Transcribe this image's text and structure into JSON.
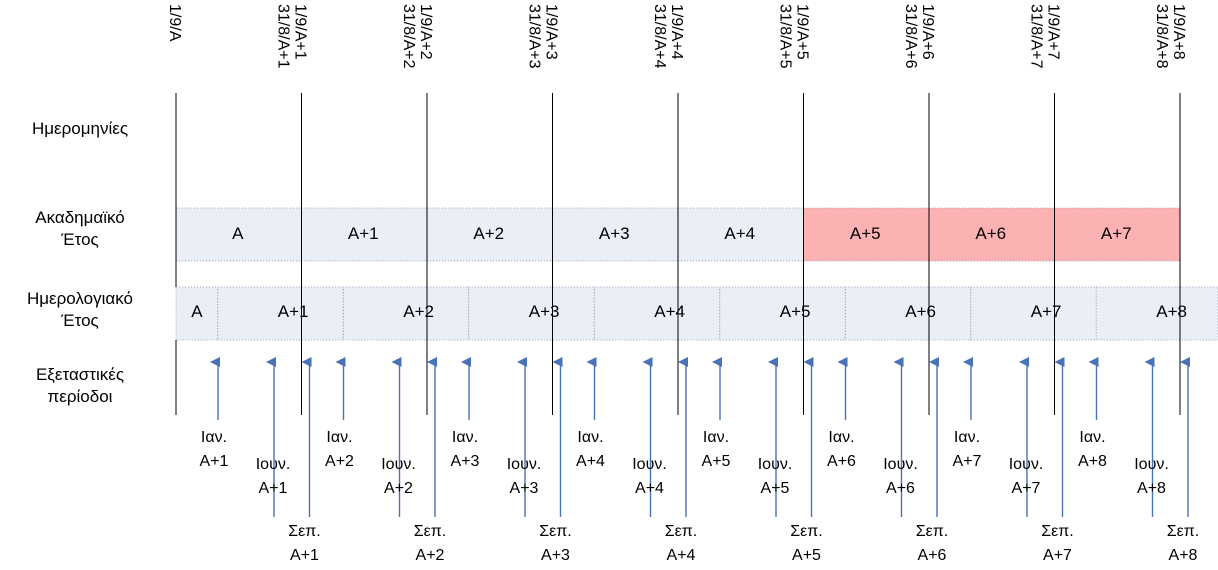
{
  "row_labels": {
    "dates": "Ημερομηνίες",
    "academic_line1": "Ακαδημαϊκό",
    "academic_line2": "Έτος",
    "calendar_line1": "Ημερολογιακό",
    "calendar_line2": "Έτος",
    "exams_line1": "Εξεταστικές",
    "exams_line2": "περίοδοι"
  },
  "dates": [
    {
      "end": "",
      "start": "1/9/Α"
    },
    {
      "end": "31/8/Α+1",
      "start": "1/9/Α+1"
    },
    {
      "end": "31/8/Α+2",
      "start": "1/9/Α+2"
    },
    {
      "end": "31/8/Α+3",
      "start": "1/9/Α+3"
    },
    {
      "end": "31/8/Α+4",
      "start": "1/9/Α+4"
    },
    {
      "end": "31/8/Α+5",
      "start": "1/9/Α+5"
    },
    {
      "end": "31/8/Α+6",
      "start": "1/9/Α+6"
    },
    {
      "end": "31/8/Α+7",
      "start": "1/9/Α+7"
    },
    {
      "end": "31/8/Α+8",
      "start": "1/9/Α+8"
    }
  ],
  "academic_years": [
    {
      "label": "Α",
      "highlight": false
    },
    {
      "label": "Α+1",
      "highlight": false
    },
    {
      "label": "Α+2",
      "highlight": false
    },
    {
      "label": "Α+3",
      "highlight": false
    },
    {
      "label": "Α+4",
      "highlight": false
    },
    {
      "label": "Α+5",
      "highlight": true
    },
    {
      "label": "Α+6",
      "highlight": true
    },
    {
      "label": "Α+7",
      "highlight": true
    }
  ],
  "calendar_years": [
    "Α",
    "Α+1",
    "Α+2",
    "Α+3",
    "Α+4",
    "Α+5",
    "Α+6",
    "Α+7",
    "Α+8"
  ],
  "exam_periods": [
    {
      "year": 1,
      "jan": "Ιαν.",
      "jun": "Ιουν.",
      "sep": "Σεπ.",
      "year_label": "Α+1"
    },
    {
      "year": 2,
      "jan": "Ιαν.",
      "jun": "Ιουν.",
      "sep": "Σεπ.",
      "year_label": "Α+2"
    },
    {
      "year": 3,
      "jan": "Ιαν.",
      "jun": "Ιουν.",
      "sep": "Σεπ.",
      "year_label": "Α+3"
    },
    {
      "year": 4,
      "jan": "Ιαν.",
      "jun": "Ιουν.",
      "sep": "Σεπ.",
      "year_label": "Α+4"
    },
    {
      "year": 5,
      "jan": "Ιαν.",
      "jun": "Ιουν.",
      "sep": "Σεπ.",
      "year_label": "Α+5"
    },
    {
      "year": 6,
      "jan": "Ιαν.",
      "jun": "Ιουν.",
      "sep": "Σεπ.",
      "year_label": "Α+6"
    },
    {
      "year": 7,
      "jan": "Ιαν.",
      "jun": "Ιουν.",
      "sep": "Σεπ.",
      "year_label": "Α+7"
    },
    {
      "year": 8,
      "jan": "Ιαν.",
      "jun": "Ιουν.",
      "sep": "Σεπ.",
      "year_label": "Α+8"
    }
  ],
  "colors": {
    "band": "#e9eef7",
    "highlight": "#fcb1b3",
    "arrow": "#4a72b8",
    "line": "#000000"
  }
}
